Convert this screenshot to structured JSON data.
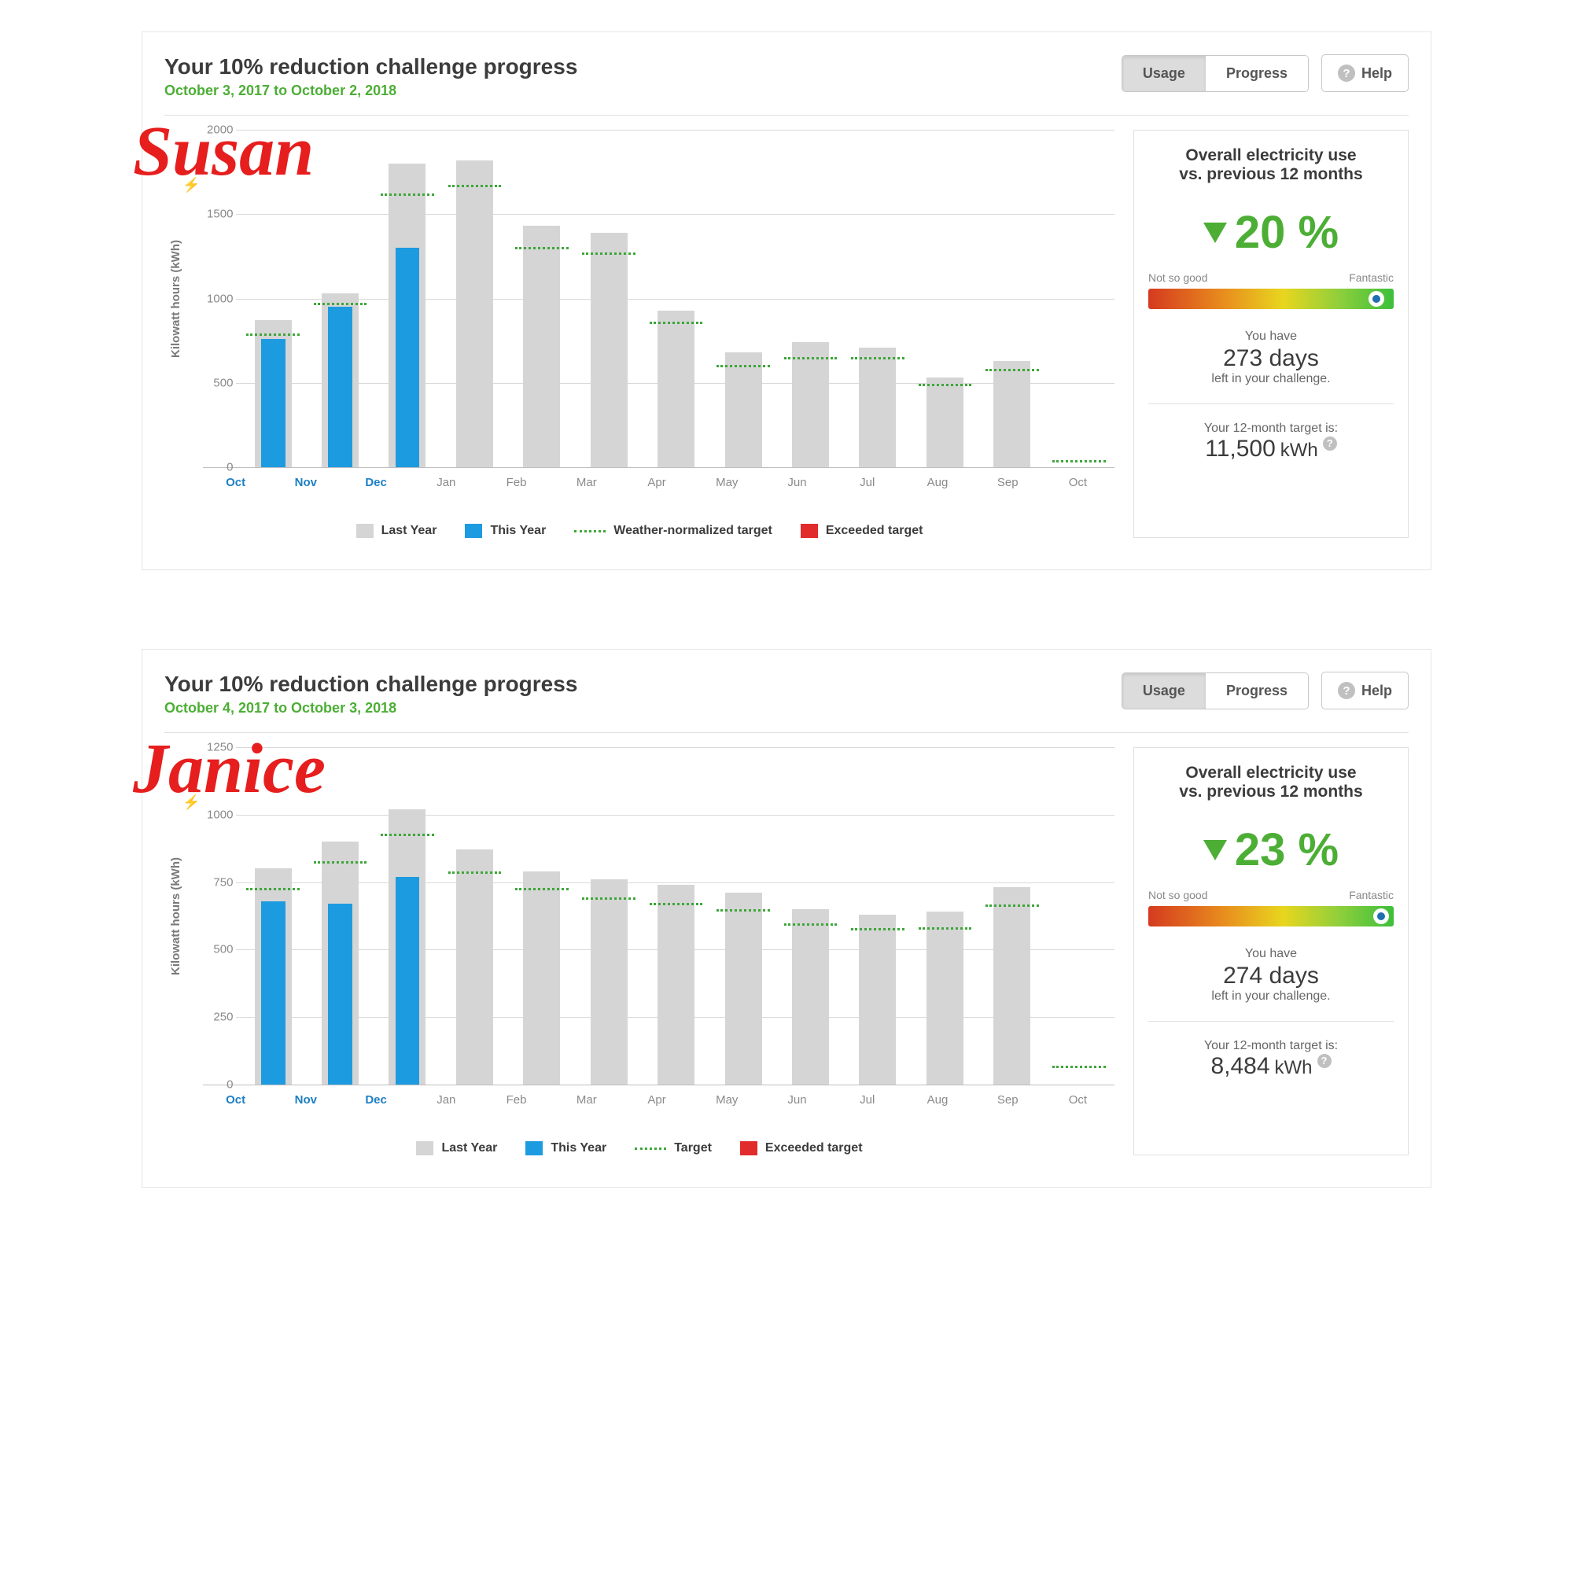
{
  "colors": {
    "last_year_bar": "#d5d5d5",
    "this_year_bar": "#1d9be0",
    "target_line": "#3ea63a",
    "exceeded": "#e22b2b",
    "accent_green": "#4cae35",
    "name_overlay": "#e61e1e",
    "gridline": "#d9d9d9",
    "gauge_gradient": [
      "#d53a1f",
      "#e88b1e",
      "#e8d61e",
      "#8ecf3c",
      "#3cbf3c"
    ]
  },
  "panels": [
    {
      "name_overlay": "Susan",
      "title": "Your 10% reduction challenge progress",
      "date_range": "October 3, 2017 to October 2, 2018",
      "tabs": {
        "usage": "Usage",
        "progress": "Progress",
        "active": "usage"
      },
      "help_label": "Help",
      "chart": {
        "type": "bar",
        "ylabel": "Kilowatt hours (kWh)",
        "ymax": 2000,
        "yticks": [
          0,
          500,
          1000,
          1500,
          2000
        ],
        "months": [
          "Oct",
          "Nov",
          "Dec",
          "Jan",
          "Feb",
          "Mar",
          "Apr",
          "May",
          "Jun",
          "Jul",
          "Aug",
          "Sep",
          "Oct"
        ],
        "last_year": [
          870,
          1030,
          1800,
          1820,
          1430,
          1390,
          930,
          680,
          740,
          710,
          530,
          630,
          0
        ],
        "this_year": [
          760,
          950,
          1300,
          null,
          null,
          null,
          null,
          null,
          null,
          null,
          null,
          null,
          null
        ],
        "target": [
          780,
          960,
          1610,
          1660,
          1290,
          1260,
          850,
          590,
          640,
          640,
          480,
          570,
          30
        ],
        "current_count": 3,
        "legend": {
          "last_year": "Last Year",
          "this_year": "This Year",
          "target": "Weather-normalized target",
          "exceeded": "Exceeded target"
        }
      },
      "side": {
        "heading_l1": "Overall electricity use",
        "heading_l2": "vs. previous 12 months",
        "pct": "20 %",
        "gauge_left": "Not so good",
        "gauge_right": "Fantastic",
        "gauge_marker": 0.93,
        "sub1": "You have",
        "days": "273 days",
        "sub2": "left in your challenge.",
        "target_label": "Your 12-month target is:",
        "target_value": "11,500",
        "target_unit": "kWh"
      }
    },
    {
      "name_overlay": "Janice",
      "title": "Your 10% reduction challenge progress",
      "date_range": "October 4, 2017 to October 3, 2018",
      "tabs": {
        "usage": "Usage",
        "progress": "Progress",
        "active": "usage"
      },
      "help_label": "Help",
      "chart": {
        "type": "bar",
        "ylabel": "Kilowatt hours (kWh)",
        "ymax": 1250,
        "yticks": [
          0,
          250,
          500,
          750,
          1000,
          1250
        ],
        "months": [
          "Oct",
          "Nov",
          "Dec",
          "Jan",
          "Feb",
          "Mar",
          "Apr",
          "May",
          "Jun",
          "Jul",
          "Aug",
          "Sep",
          "Oct"
        ],
        "last_year": [
          800,
          900,
          1020,
          870,
          790,
          760,
          740,
          710,
          650,
          630,
          640,
          730,
          0
        ],
        "this_year": [
          680,
          670,
          770,
          null,
          null,
          null,
          null,
          null,
          null,
          null,
          null,
          null,
          null
        ],
        "target": [
          720,
          820,
          920,
          780,
          720,
          685,
          665,
          640,
          590,
          570,
          575,
          660,
          60
        ],
        "current_count": 3,
        "legend": {
          "last_year": "Last Year",
          "this_year": "This Year",
          "target": "Target",
          "exceeded": "Exceeded target"
        }
      },
      "side": {
        "heading_l1": "Overall electricity use",
        "heading_l2": "vs. previous 12 months",
        "pct": "23 %",
        "gauge_left": "Not so good",
        "gauge_right": "Fantastic",
        "gauge_marker": 0.95,
        "sub1": "You have",
        "days": "274 days",
        "sub2": "left in your challenge.",
        "target_label": "Your 12-month target is:",
        "target_value": "8,484",
        "target_unit": "kWh"
      }
    }
  ]
}
